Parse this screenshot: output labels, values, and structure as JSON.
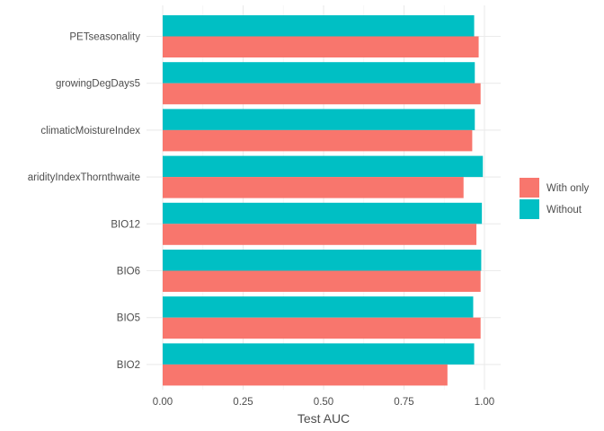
{
  "chart_data": {
    "type": "bar",
    "orientation": "horizontal",
    "title": "",
    "xlabel": "Test AUC",
    "ylabel": "",
    "xlim": [
      0,
      1.04
    ],
    "xticks": [
      0,
      0.25,
      0.5,
      0.75,
      1.0
    ],
    "xtick_labels": [
      "0.00",
      "0.25",
      "0.50",
      "0.75",
      "1.00"
    ],
    "grid": true,
    "legend_position": "right",
    "categories": [
      "PETseasonality",
      "growingDegDays5",
      "climaticMoistureIndex",
      "aridityIndexThornthwaite",
      "BIO12",
      "BIO6",
      "BIO5",
      "BIO2"
    ],
    "series": [
      {
        "name": "With only",
        "color": "#F8766D",
        "values": [
          0.982,
          0.988,
          0.962,
          0.935,
          0.975,
          0.988,
          0.988,
          0.885
        ]
      },
      {
        "name": "Without",
        "color": "#00BFC4",
        "values": [
          0.968,
          0.97,
          0.97,
          0.995,
          0.992,
          0.99,
          0.965,
          0.968
        ]
      }
    ]
  }
}
